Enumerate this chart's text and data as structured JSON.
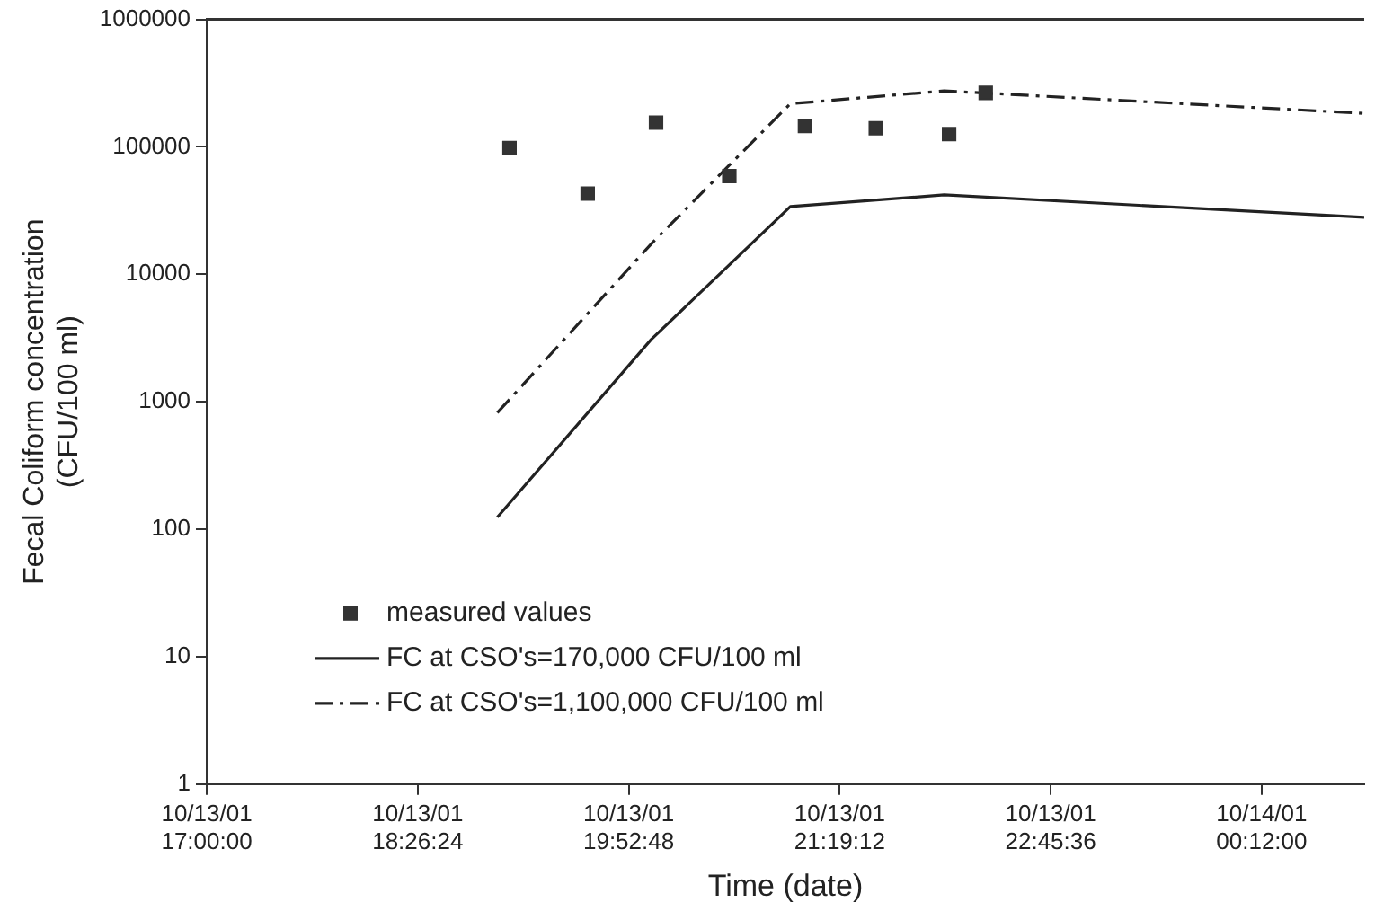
{
  "chart_data": {
    "type": "line",
    "xlabel": "Time (date)",
    "ylabel": "Fecal Coliform concentration (CFU/100 ml)",
    "log": "y",
    "grid": false,
    "legend": "bottom left",
    "xlim": [
      "--10-13T17:00",
      "--10-14T00:54"
    ],
    "xticks": [
      {
        "value": "--10-13T17:00",
        "label": "10/13/01 17:00:00"
      },
      {
        "value": "--10-13T18:26:24",
        "label": "10/13/01 18:26:24"
      },
      {
        "value": "--10-13T19:52:48",
        "label": "10/13/01 19:52:48"
      },
      {
        "value": "--10-13T21:19:12",
        "label": "10/13/01 21:19:12"
      },
      {
        "value": "--10-13T22:45:36",
        "label": "10/13/01 22:45:36"
      },
      {
        "value": "--10-14T00:12",
        "label": "10/14/01 00:12:00"
      }
    ],
    "ylim": [
      1,
      1000000
    ],
    "yticks": [
      1,
      10,
      100,
      1000,
      10000,
      100000,
      1000000
    ],
    "series": [
      {
        "name": "measured values",
        "type": "scatter",
        "marker": "square",
        "color": "#333333",
        "x": [
          "--10-13T19:04",
          "--10-13T19:36",
          "--10-13T20:04",
          "--10-13T20:34",
          "--10-13T21:05",
          "--10-13T21:34",
          "--10-13T22:04",
          "--10-13T22:19"
        ],
        "values": [
          98000,
          43000,
          155000,
          59000,
          146000,
          140000,
          126000,
          265000
        ]
      },
      {
        "name": "FC at CSO's=170,000 CFU/100 ml",
        "line_style": "solid",
        "color": "#222222",
        "x": [
          "--10-13T18:59",
          "--10-13T20:02",
          "--10-13T20:59",
          "--10-13T22:02",
          "--10-14T00:54"
        ],
        "values": [
          124,
          3080,
          34000,
          42000,
          28000
        ]
      },
      {
        "name": "FC at CSO's=1,100,000 CFU/100 ml",
        "line_style": "dashed",
        "color": "#222222",
        "x": [
          "--10-13T18:59",
          "--10-13T20:02",
          "--10-13T20:59",
          "--10-13T22:02",
          "--10-14T00:54"
        ],
        "values": [
          820,
          17300,
          218000,
          275000,
          183000
        ]
      }
    ]
  }
}
